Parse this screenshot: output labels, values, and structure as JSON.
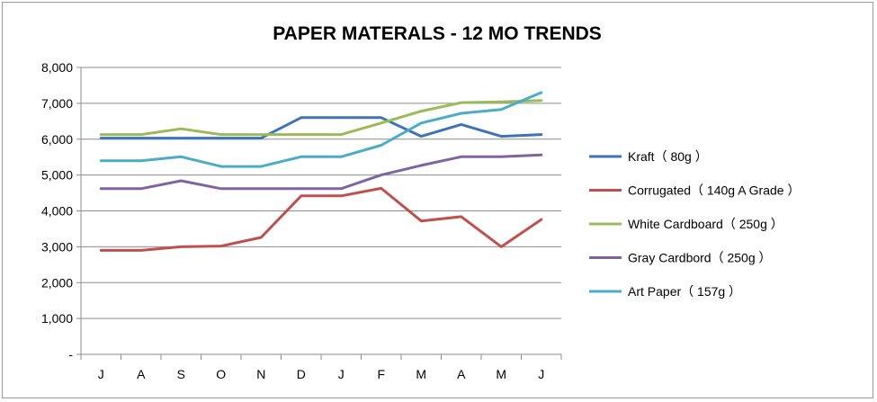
{
  "chart_data": {
    "type": "line",
    "title": "PAPER MATERALS - 12 MO TRENDS",
    "xlabel": "",
    "ylabel": "",
    "categories": [
      "J",
      "A",
      "S",
      "O",
      "N",
      "D",
      "J",
      "F",
      "M",
      "A",
      "M",
      "J"
    ],
    "ylim": [
      0,
      8000
    ],
    "yticks": [
      0,
      1000,
      2000,
      3000,
      4000,
      5000,
      6000,
      7000,
      8000
    ],
    "ytick_labels": [
      "-",
      "1,000",
      "2,000",
      "3,000",
      "4,000",
      "5,000",
      "6,000",
      "7,000",
      "8,000"
    ],
    "grid": "horizontal",
    "legend_position": "right",
    "series": [
      {
        "name": "Kraft（ 80g ）",
        "color": "#3f73b7",
        "values": [
          6030,
          6030,
          6030,
          6030,
          6030,
          6600,
          6600,
          6600,
          6080,
          6410,
          6080,
          6130
        ]
      },
      {
        "name": "Corrugated（ 140g A Grade ）",
        "color": "#c0504d",
        "values": [
          2900,
          2900,
          3000,
          3020,
          3260,
          4420,
          4420,
          4630,
          3720,
          3840,
          3000,
          3760
        ]
      },
      {
        "name": "White Cardboard（ 250g ）",
        "color": "#9bbb59",
        "values": [
          6130,
          6130,
          6290,
          6130,
          6130,
          6130,
          6130,
          6450,
          6780,
          7020,
          7040,
          7080
        ]
      },
      {
        "name": "Gray Cardbord（ 250g ）",
        "color": "#8064a2",
        "values": [
          4620,
          4620,
          4840,
          4620,
          4620,
          4620,
          4620,
          5000,
          5270,
          5510,
          5510,
          5560
        ]
      },
      {
        "name": "Art Paper（ 157g ）",
        "color": "#4bacc6",
        "values": [
          5400,
          5400,
          5510,
          5240,
          5240,
          5510,
          5510,
          5830,
          6450,
          6720,
          6830,
          7300
        ]
      }
    ]
  }
}
